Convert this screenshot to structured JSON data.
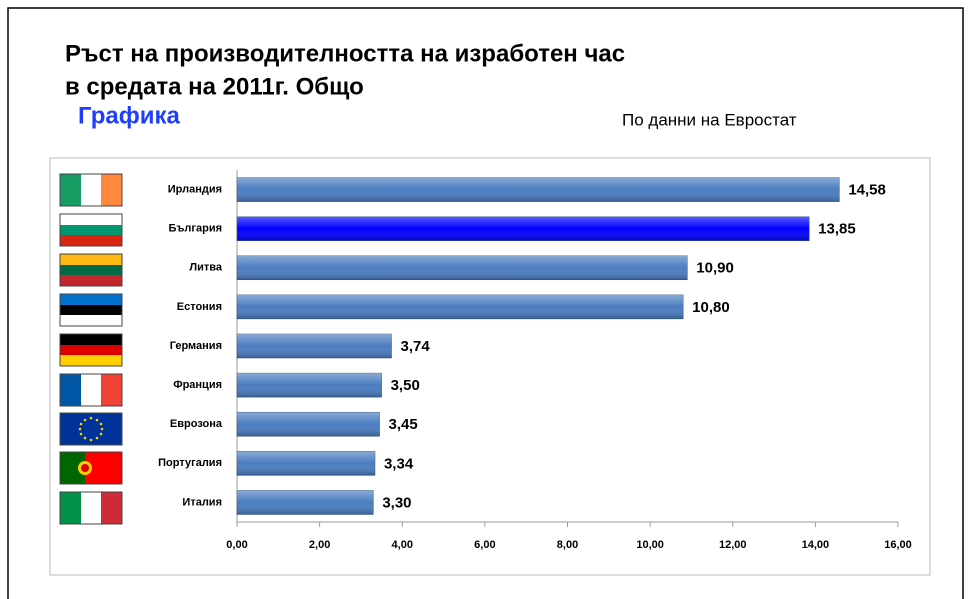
{
  "chart_data": {
    "type": "hbar",
    "title": [
      "Ръст на производителността на изработен час",
      "в средата на 2011г. Общо"
    ],
    "subtitle": "Графика",
    "source": "По данни на Евростат",
    "categories": [
      "Ирландия",
      "България",
      "Литва",
      "Естония",
      "Германия",
      "Франция",
      "Еврозона",
      "Португалия",
      "Италия"
    ],
    "values": [
      14.58,
      13.85,
      10.9,
      10.8,
      3.74,
      3.5,
      3.45,
      3.34,
      3.3
    ],
    "value_labels": [
      "14,58",
      "13,85",
      "10,90",
      "10,80",
      "3,74",
      "3,50",
      "3,45",
      "3,34",
      "3,30"
    ],
    "colors": [
      "#4a7dc0",
      "#0000ff",
      "#4a7dc0",
      "#4a7dc0",
      "#4a7dc0",
      "#4a7dc0",
      "#4a7dc0",
      "#4a7dc0",
      "#4a7dc0"
    ],
    "xlim": [
      0,
      16
    ],
    "xticks": [
      {
        "value": 0,
        "label": "0,00"
      },
      {
        "value": 2,
        "label": "2,00"
      },
      {
        "value": 4,
        "label": "4,00"
      },
      {
        "value": 6,
        "label": "6,00"
      },
      {
        "value": 8,
        "label": "8,00"
      },
      {
        "value": 10,
        "label": "10,00"
      },
      {
        "value": 12,
        "label": "12,00"
      },
      {
        "value": 14,
        "label": "14,00"
      },
      {
        "value": 16,
        "label": "16,00"
      }
    ],
    "grid": false
  }
}
